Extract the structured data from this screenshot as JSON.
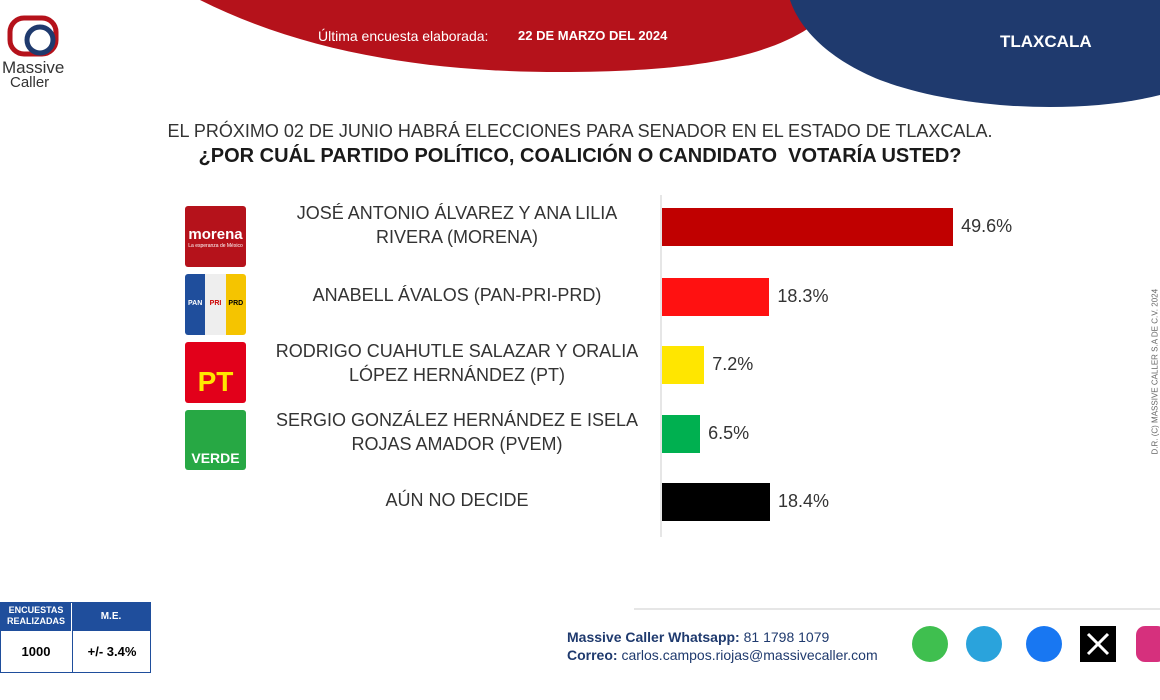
{
  "header": {
    "brand": "Massive",
    "brand_sub": "Caller",
    "survey_label": "Última encuesta elaborada:",
    "survey_date": "22 DE MARZO DEL 2024",
    "state": "TLAXCALA"
  },
  "chart_data": {
    "type": "bar",
    "orientation": "horizontal",
    "title": "EL PRÓXIMO 02 DE JUNIO HABRÁ ELECCIONES PARA SENADOR EN EL ESTADO DE TLAXCALA.",
    "subtitle": "¿POR CUÁL PARTIDO POLÍTICO, COALICIÓN O CANDIDATO  VOTARÍA USTED?",
    "categories": [
      "JOSÉ ANTONIO ÁLVAREZ  Y ANA LILIA\nRIVERA (MORENA)",
      "ANABELL ÁVALOS (PAN-PRI-PRD)",
      "RODRIGO CUAHUTLE SALAZAR Y ORALIA\nLÓPEZ HERNÁNDEZ (PT)",
      "SERGIO GONZÁLEZ HERNÁNDEZ  E ISELA\nROJAS AMADOR (PVEM)",
      "AÚN NO DECIDE"
    ],
    "values": [
      49.6,
      18.3,
      7.2,
      6.5,
      18.4
    ],
    "value_labels": [
      "49.6%",
      "18.3%",
      "7.2%",
      "6.5%",
      "18.4%"
    ],
    "colors": [
      "#c00000",
      "#ff1111",
      "#ffe600",
      "#00b050",
      "#000000"
    ]
  },
  "logos": {
    "morena": "morena",
    "morena_sub": "La esperanza de México",
    "pan": "PAN",
    "pri": "PRI",
    "prd": "PRD",
    "pt": "PT",
    "verde": "VERDE"
  },
  "stats": {
    "headers": [
      "ENCUESTAS REALIZADAS",
      "M.E."
    ],
    "values": [
      "1000",
      "+/- 3.4%"
    ]
  },
  "footer": {
    "whatsapp_label": "Massive Caller Whatsapp:",
    "whatsapp": "81 1798 1079",
    "email_label": "Correo:",
    "email": "carlos.campos.riojas@massivecaller.com",
    "copyright": "D.R. (C) MASSIVE CALLER S.A DE C.V. 2024"
  }
}
